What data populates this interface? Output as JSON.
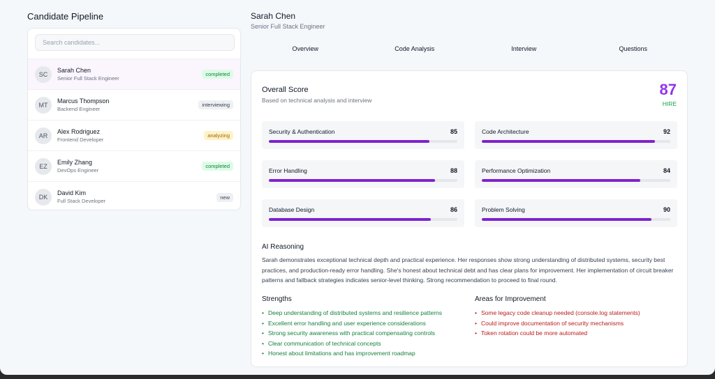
{
  "pipeline": {
    "title": "Candidate Pipeline",
    "search_placeholder": "Search candidates...",
    "candidates": [
      {
        "initials": "SC",
        "name": "Sarah Chen",
        "role": "Senior Full Stack Engineer",
        "status": "completed"
      },
      {
        "initials": "MT",
        "name": "Marcus Thompson",
        "role": "Backend Engineer",
        "status": "interviewing"
      },
      {
        "initials": "AR",
        "name": "Alex Rodriguez",
        "role": "Frontend Developer",
        "status": "analyzing"
      },
      {
        "initials": "EZ",
        "name": "Emily Zhang",
        "role": "DevOps Engineer",
        "status": "completed"
      },
      {
        "initials": "DK",
        "name": "David Kim",
        "role": "Full Stack Developer",
        "status": "new"
      }
    ]
  },
  "detail": {
    "name": "Sarah Chen",
    "role": "Senior Full Stack Engineer",
    "tabs": [
      "Overview",
      "Code Analysis",
      "Interview",
      "Questions"
    ],
    "overall": {
      "title": "Overall Score",
      "subtitle": "Based on technical analysis and interview",
      "score": "87",
      "recommendation": "HIRE"
    },
    "metrics": [
      {
        "label": "Security & Authentication",
        "value": "85"
      },
      {
        "label": "Code Architecture",
        "value": "92"
      },
      {
        "label": "Error Handling",
        "value": "88"
      },
      {
        "label": "Performance Optimization",
        "value": "84"
      },
      {
        "label": "Database Design",
        "value": "86"
      },
      {
        "label": "Problem Solving",
        "value": "90"
      }
    ],
    "reasoning": {
      "title": "AI Reasoning",
      "text": "Sarah demonstrates exceptional technical depth and practical experience. Her responses show strong understanding of distributed systems, security best practices, and production-ready error handling. She's honest about technical debt and has clear plans for improvement. Her implementation of circuit breaker patterns and fallback strategies indicates senior-level thinking. Strong recommendation to proceed to final round."
    },
    "strengths": {
      "title": "Strengths",
      "items": [
        "Deep understanding of distributed systems and resilience patterns",
        "Excellent error handling and user experience considerations",
        "Strong security awareness with practical compensating controls",
        "Clear communication of technical concepts",
        "Honest about limitations and has improvement roadmap"
      ]
    },
    "improvements": {
      "title": "Areas for Improvement",
      "items": [
        "Some legacy code cleanup needed (console.log statements)",
        "Could improve documentation of security mechanisms",
        "Token rotation could be more automated"
      ]
    }
  },
  "colors": {
    "accent": "#9333ea",
    "bar": "#7e22ce",
    "strength": "#15803d",
    "improvement": "#b91c1c",
    "hire": "#16a34a"
  }
}
